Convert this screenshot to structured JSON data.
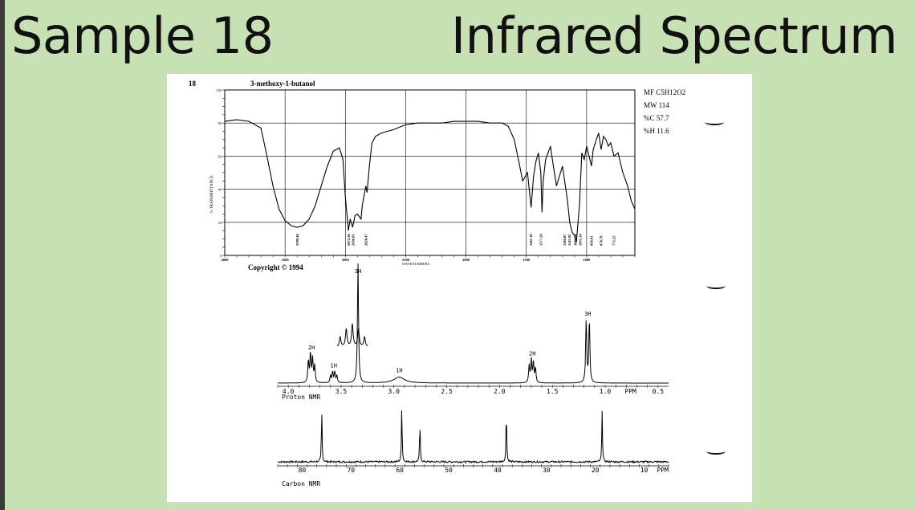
{
  "slide": {
    "title_left": "Sample 18",
    "title_right": "Infrared Spectrum"
  },
  "ir": {
    "sample_number": "18",
    "compound": "3-methoxy-1-butanol",
    "formula_lines": [
      "MF C5H12O2",
      "MW 114",
      "%C 57.7",
      "%H 11.6"
    ],
    "copyright": "Copyright © 1994",
    "ylabel": "% TRANSMITTANCE",
    "xlabel": "WAVENUMBERS"
  },
  "hnmr": {
    "label": "Proton NMR",
    "ppm_unit": "PPM"
  },
  "cnmr": {
    "label": "Carbon NMR",
    "ppm_unit": "PPM"
  },
  "chart_data": [
    {
      "type": "line",
      "name": "IR spectrum",
      "title": "3-methoxy-1-butanol",
      "xlabel": "WAVENUMBERS",
      "ylabel": "% TRANSMITTANCE",
      "xlim": [
        4000,
        600
      ],
      "ylim": [
        0,
        100
      ],
      "x_ticks": [
        4000,
        3500,
        3000,
        2500,
        2000,
        1500,
        1000
      ],
      "y_ticks": [
        0,
        20,
        40,
        60,
        80,
        100
      ],
      "grid": true,
      "points": [
        [
          4000,
          81
        ],
        [
          3900,
          82
        ],
        [
          3800,
          81
        ],
        [
          3700,
          77
        ],
        [
          3650,
          60
        ],
        [
          3600,
          42
        ],
        [
          3550,
          28
        ],
        [
          3500,
          21
        ],
        [
          3450,
          18
        ],
        [
          3400,
          17
        ],
        [
          3350,
          18
        ],
        [
          3300,
          22
        ],
        [
          3250,
          30
        ],
        [
          3200,
          42
        ],
        [
          3150,
          54
        ],
        [
          3100,
          63
        ],
        [
          3050,
          65
        ],
        [
          3020,
          58
        ],
        [
          3000,
          35
        ],
        [
          2975,
          15
        ],
        [
          2960,
          22
        ],
        [
          2940,
          17
        ],
        [
          2920,
          24
        ],
        [
          2900,
          25
        ],
        [
          2870,
          22
        ],
        [
          2860,
          30
        ],
        [
          2840,
          38
        ],
        [
          2830,
          42
        ],
        [
          2820,
          38
        ],
        [
          2800,
          55
        ],
        [
          2780,
          68
        ],
        [
          2750,
          72
        ],
        [
          2700,
          74
        ],
        [
          2600,
          76
        ],
        [
          2500,
          79
        ],
        [
          2400,
          80
        ],
        [
          2300,
          80
        ],
        [
          2200,
          80
        ],
        [
          2100,
          81
        ],
        [
          2000,
          81
        ],
        [
          1900,
          81
        ],
        [
          1800,
          80
        ],
        [
          1700,
          80
        ],
        [
          1650,
          78
        ],
        [
          1600,
          70
        ],
        [
          1560,
          56
        ],
        [
          1530,
          45
        ],
        [
          1490,
          50
        ],
        [
          1460,
          29
        ],
        [
          1440,
          48
        ],
        [
          1420,
          57
        ],
        [
          1400,
          62
        ],
        [
          1380,
          50
        ],
        [
          1370,
          26
        ],
        [
          1360,
          45
        ],
        [
          1340,
          58
        ],
        [
          1320,
          62
        ],
        [
          1300,
          66
        ],
        [
          1280,
          56
        ],
        [
          1250,
          42
        ],
        [
          1200,
          54
        ],
        [
          1160,
          34
        ],
        [
          1140,
          20
        ],
        [
          1120,
          14
        ],
        [
          1100,
          12
        ],
        [
          1085,
          8
        ],
        [
          1060,
          30
        ],
        [
          1040,
          62
        ],
        [
          1020,
          58
        ],
        [
          1000,
          66
        ],
        [
          980,
          60
        ],
        [
          960,
          54
        ],
        [
          945,
          64
        ],
        [
          920,
          70
        ],
        [
          900,
          74
        ],
        [
          880,
          64
        ],
        [
          860,
          72
        ],
        [
          840,
          70
        ],
        [
          820,
          66
        ],
        [
          800,
          68
        ],
        [
          773,
          60
        ],
        [
          740,
          62
        ],
        [
          700,
          50
        ],
        [
          660,
          42
        ],
        [
          630,
          33
        ],
        [
          600,
          28
        ]
      ],
      "peak_labels": [
        {
          "x": 3399.48,
          "label": "3399.48"
        },
        {
          "x": 2972.38,
          "label": "2972.38"
        },
        {
          "x": 2936.03,
          "label": "2936.03"
        },
        {
          "x": 2828.47,
          "label": "2828.47"
        },
        {
          "x": 1461.18,
          "label": "1461.18"
        },
        {
          "x": 1377.28,
          "label": "1377.28"
        },
        {
          "x": 1180.87,
          "label": "1180.87"
        },
        {
          "x": 1143.92,
          "label": "1143.92"
        },
        {
          "x": 1093.88,
          "label": "1093.88"
        },
        {
          "x": 1051.34,
          "label": "1051.34"
        },
        {
          "x": 958.81,
          "label": "958.81"
        },
        {
          "x": 878.79,
          "label": "878.79"
        },
        {
          "x": 773.55,
          "label": "773.55"
        }
      ]
    },
    {
      "type": "line",
      "name": "Proton NMR",
      "xlabel": "PPM",
      "xlim": [
        4.1,
        0.4
      ],
      "x_ticks": [
        4.0,
        3.5,
        3.0,
        2.5,
        2.0,
        1.5,
        1.0,
        0.5
      ],
      "peaks": [
        {
          "ppm": 3.81,
          "height": 0.18
        },
        {
          "ppm": 3.79,
          "height": 0.24
        },
        {
          "ppm": 3.77,
          "height": 0.2
        },
        {
          "ppm": 3.75,
          "height": 0.14
        },
        {
          "ppm": 3.6,
          "height": 0.06
        },
        {
          "ppm": 3.58,
          "height": 0.09
        },
        {
          "ppm": 3.56,
          "height": 0.09
        },
        {
          "ppm": 3.54,
          "height": 0.06
        },
        {
          "ppm": 3.34,
          "height": 1.0
        },
        {
          "ppm": 2.95,
          "height": 0.05
        },
        {
          "ppm": 1.72,
          "height": 0.14
        },
        {
          "ppm": 1.7,
          "height": 0.19
        },
        {
          "ppm": 1.68,
          "height": 0.17
        },
        {
          "ppm": 1.66,
          "height": 0.12
        },
        {
          "ppm": 1.18,
          "height": 0.52
        },
        {
          "ppm": 1.15,
          "height": 0.52
        }
      ],
      "integrations": [
        {
          "ppm": 3.78,
          "label": "2H"
        },
        {
          "ppm": 3.57,
          "label": "1H"
        },
        {
          "ppm": 3.34,
          "label": "3H"
        },
        {
          "ppm": 2.95,
          "label": "1H"
        },
        {
          "ppm": 1.69,
          "label": "2H"
        },
        {
          "ppm": 1.165,
          "label": "3H"
        }
      ],
      "inset": {
        "ppm_range": [
          3.65,
          3.48
        ],
        "heights": [
          0.3,
          0.55,
          0.7,
          0.55,
          0.3
        ]
      }
    },
    {
      "type": "line",
      "name": "Carbon NMR",
      "xlabel": "PPM",
      "xlim": [
        85,
        5
      ],
      "x_ticks": [
        80,
        70,
        60,
        50,
        40,
        30,
        20,
        10
      ],
      "peaks": [
        {
          "ppm": 76.0,
          "height": 0.9
        },
        {
          "ppm": 59.6,
          "height": 1.0
        },
        {
          "ppm": 55.9,
          "height": 0.68
        },
        {
          "ppm": 38.2,
          "height": 0.95
        },
        {
          "ppm": 18.6,
          "height": 0.88
        }
      ]
    }
  ]
}
